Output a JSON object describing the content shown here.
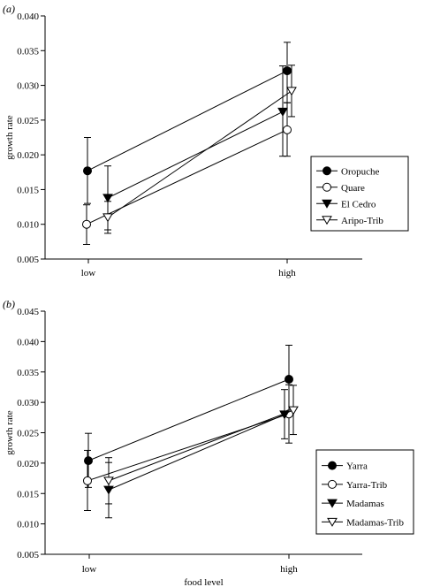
{
  "chart_data": [
    {
      "type": "line",
      "panel_label": "(a)",
      "ylabel": "growth rate",
      "xlabel": "",
      "categories": [
        "low",
        "high"
      ],
      "ylim": [
        0.005,
        0.04
      ],
      "yticks": [
        "0.005",
        "0.010",
        "0.015",
        "0.020",
        "0.025",
        "0.030",
        "0.035",
        "0.040"
      ],
      "grid": false,
      "legend_position": "lower-right",
      "series": [
        {
          "name": "Oropuche",
          "marker": "filled-circle",
          "values": [
            0.0177,
            0.0321
          ],
          "err_low": [
            0.013,
            0.0275
          ],
          "err_high": [
            0.0225,
            0.0362
          ]
        },
        {
          "name": "Quare",
          "marker": "open-circle",
          "values": [
            0.01,
            0.0236
          ],
          "err_low": [
            0.0071,
            0.0198
          ],
          "err_high": [
            0.0128,
            0.0275
          ]
        },
        {
          "name": "El Cedro",
          "marker": "filled-triangle-down",
          "values": [
            0.0138,
            0.0262
          ],
          "err_low": [
            0.0092,
            0.0198
          ],
          "err_high": [
            0.0184,
            0.0328
          ]
        },
        {
          "name": "Aripo-Trib",
          "marker": "open-triangle-down",
          "values": [
            0.011,
            0.0292
          ],
          "err_low": [
            0.0087,
            0.0255
          ],
          "err_high": [
            0.0133,
            0.0329
          ]
        }
      ]
    },
    {
      "type": "line",
      "panel_label": "(b)",
      "ylabel": "growth rate",
      "xlabel": "food level",
      "categories": [
        "low",
        "high"
      ],
      "ylim": [
        0.005,
        0.045
      ],
      "yticks": [
        "0.005",
        "0.010",
        "0.015",
        "0.020",
        "0.025",
        "0.030",
        "0.035",
        "0.040",
        "0.045"
      ],
      "grid": false,
      "legend_position": "lower-right",
      "series": [
        {
          "name": "Yarra",
          "marker": "filled-circle",
          "values": [
            0.0204,
            0.0338
          ],
          "err_low": [
            0.016,
            0.0283
          ],
          "err_high": [
            0.0249,
            0.0394
          ]
        },
        {
          "name": "Yarra-Trib",
          "marker": "open-circle",
          "values": [
            0.0171,
            0.0281
          ],
          "err_low": [
            0.0122,
            0.0233
          ],
          "err_high": [
            0.0221,
            0.0329
          ]
        },
        {
          "name": "Madamas",
          "marker": "filled-triangle-down",
          "values": [
            0.0156,
            0.028
          ],
          "err_low": [
            0.011,
            0.024
          ],
          "err_high": [
            0.0201,
            0.0321
          ]
        },
        {
          "name": "Madamas-Trib",
          "marker": "open-triangle-down",
          "values": [
            0.0171,
            0.0287
          ],
          "err_low": [
            0.0133,
            0.0247
          ],
          "err_high": [
            0.0209,
            0.0328
          ]
        }
      ]
    }
  ]
}
